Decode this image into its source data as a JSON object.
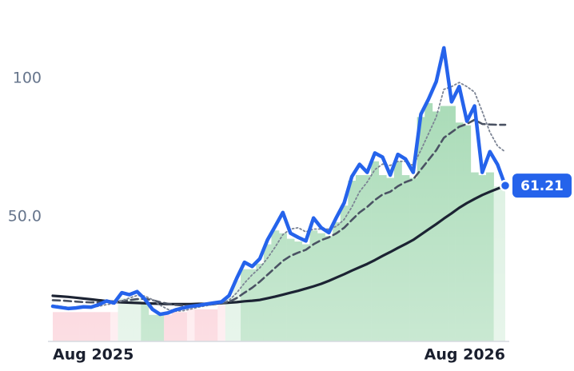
{
  "chart_data": {
    "type": "line",
    "categories": [
      "Aug 2025",
      null,
      null,
      null,
      null,
      null,
      null,
      null,
      null,
      null,
      null,
      null,
      null,
      null,
      null,
      null,
      null,
      null,
      null,
      null,
      null,
      null,
      null,
      null,
      null,
      null,
      null,
      null,
      null,
      null,
      null,
      null,
      null,
      null,
      null,
      null,
      null,
      null,
      null,
      null,
      null,
      null,
      null,
      null,
      null,
      null,
      null,
      null,
      null,
      null,
      null,
      null,
      null,
      null,
      null,
      null,
      null,
      null,
      null,
      "Aug 2026"
    ],
    "ylim": [
      4.9,
      128.3
    ],
    "yticks": [
      {
        "value": 50,
        "label": "50.0"
      },
      100
    ],
    "bars": {
      "values": [
        15.5,
        15.5,
        15.5,
        15.5,
        15.5,
        15.5,
        15.5,
        15.5,
        15.5,
        20.5,
        20.5,
        20.5,
        18.5,
        14.5,
        14.5,
        14.5,
        15.5,
        15.5,
        16.5,
        16.5,
        16.5,
        16.5,
        18,
        21,
        27,
        31,
        31,
        33,
        40,
        45,
        44,
        42,
        41,
        40,
        45,
        44,
        43,
        48,
        54,
        63,
        65,
        65,
        70,
        65,
        64,
        70,
        65,
        64,
        86,
        91,
        88,
        90,
        90,
        84,
        83,
        66,
        65,
        66,
        61,
        61
      ],
      "colors": [
        "#f9c3cd",
        "#f9c3cd",
        "#f9c3cd",
        "#f9c3cd",
        "#f9c3cd",
        "#f9c3cd",
        "#f9c3cd",
        "#f9c3cd",
        "#fde1e6",
        "#d4eddb",
        "#d4eddb",
        "#d4eddb",
        "#9dd6ad",
        "#9dd6ad",
        "#9dd6ad",
        "#f9c3cd",
        "#f9c3cd",
        "#f9c3cd",
        "#fde1e6",
        "#f9c3cd",
        "#f9c3cd",
        "#f9c3cd",
        "#fde1e6",
        "#d4eddb",
        "#d4eddb",
        "#9dd6ad",
        "#9dd6ad",
        "#9dd6ad",
        "#9dd6ad",
        "#9dd6ad",
        "#9dd6ad",
        "#9dd6ad",
        "#9dd6ad",
        "#9dd6ad",
        "#9dd6ad",
        "#9dd6ad",
        "#9dd6ad",
        "#9dd6ad",
        "#9dd6ad",
        "#9dd6ad",
        "#9dd6ad",
        "#9dd6ad",
        "#9dd6ad",
        "#9dd6ad",
        "#9dd6ad",
        "#9dd6ad",
        "#9dd6ad",
        "#9dd6ad",
        "#9dd6ad",
        "#9dd6ad",
        "#9dd6ad",
        "#9dd6ad",
        "#9dd6ad",
        "#9dd6ad",
        "#9dd6ad",
        "#9dd6ad",
        "#9dd6ad",
        "#9dd6ad",
        "#d4eddb",
        "#d4eddb"
      ]
    },
    "series": [
      {
        "color": "#2563eb",
        "line_style": "solid",
        "values": [
          17.6,
          17.2,
          16.8,
          17.0,
          17.4,
          17.3,
          18.2,
          19.5,
          18.8,
          22.5,
          21.8,
          22.9,
          20.2,
          16.5,
          14.7,
          15.2,
          16.3,
          17.0,
          17.6,
          17.9,
          18.4,
          18.8,
          19.2,
          21.5,
          27.8,
          33.5,
          32.0,
          34.8,
          41.6,
          46.5,
          51.5,
          44.0,
          42.5,
          41.2,
          49.5,
          46.0,
          44.2,
          49.8,
          55.0,
          64.5,
          68.9,
          66.0,
          73.0,
          71.5,
          65.0,
          72.5,
          70.8,
          66.0,
          87.0,
          92.5,
          98.8,
          111.0,
          91.5,
          97.0,
          84.5,
          90.0,
          66.0,
          73.5,
          68.8,
          61.21
        ]
      },
      {
        "color": "#7c8494",
        "line_style": "dotted",
        "values": [
          18.0,
          17.6,
          17.2,
          17.0,
          17.1,
          17.3,
          17.6,
          18.2,
          18.6,
          19.6,
          20.6,
          21.5,
          21.3,
          20.0,
          18.0,
          16.5,
          15.8,
          16.0,
          16.6,
          17.3,
          17.8,
          18.3,
          18.8,
          19.8,
          22.5,
          26.0,
          29.0,
          31.5,
          35.0,
          39.0,
          43.5,
          45.5,
          46.0,
          44.5,
          45.5,
          45.5,
          45.5,
          46.5,
          49.0,
          53.5,
          59.0,
          62.5,
          67.0,
          69.0,
          68.5,
          70.0,
          70.0,
          68.5,
          74.0,
          80.0,
          86.0,
          96.0,
          97.0,
          98.5,
          97.0,
          95.0,
          88.0,
          80.5,
          75.5,
          73.4
        ]
      },
      {
        "color": "#4a5263",
        "line_style": "dashed",
        "values": [
          19.8,
          19.7,
          19.5,
          19.3,
          19.1,
          19.0,
          19.0,
          19.1,
          19.2,
          19.5,
          19.8,
          20.2,
          20.3,
          19.8,
          19.1,
          18.5,
          18.1,
          17.9,
          17.8,
          17.9,
          18.1,
          18.3,
          18.6,
          19.2,
          20.6,
          22.5,
          24.3,
          26.5,
          29.0,
          31.5,
          34.0,
          35.8,
          37.0,
          38.0,
          40.0,
          41.5,
          42.5,
          44.0,
          46.0,
          48.8,
          51.5,
          53.5,
          56.0,
          58.0,
          59.0,
          61.0,
          62.5,
          63.5,
          67.0,
          70.5,
          74.0,
          78.5,
          80.5,
          82.5,
          83.5,
          85.0,
          83.5,
          83.3,
          83.2,
          83.2
        ]
      },
      {
        "color": "#1c2333",
        "line_style": "solid",
        "values": [
          21.4,
          21.2,
          21.0,
          20.7,
          20.4,
          20.1,
          19.8,
          19.5,
          19.2,
          19.0,
          18.9,
          18.8,
          18.7,
          18.6,
          18.5,
          18.4,
          18.4,
          18.4,
          18.4,
          18.5,
          18.5,
          18.6,
          18.7,
          18.9,
          19.1,
          19.4,
          19.6,
          19.9,
          20.5,
          21.1,
          21.8,
          22.5,
          23.2,
          24.0,
          24.8,
          25.7,
          26.8,
          28.0,
          29.2,
          30.5,
          31.7,
          32.9,
          34.3,
          35.8,
          37.2,
          38.7,
          40.1,
          41.6,
          43.5,
          45.4,
          47.3,
          49.3,
          51.2,
          53.2,
          54.9,
          56.4,
          57.8,
          59.0,
          60.1,
          61.2
        ]
      }
    ]
  }
}
